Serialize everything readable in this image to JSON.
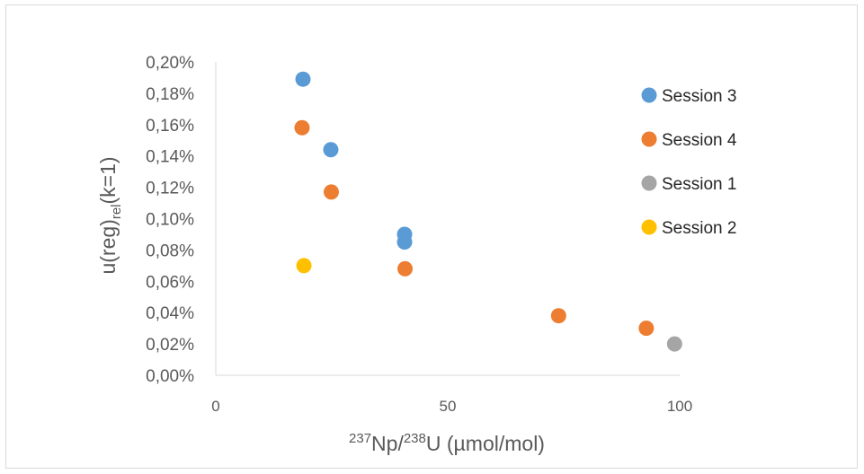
{
  "chart_data": {
    "type": "scatter",
    "title": "",
    "xlabel": {
      "base_parts": [
        "",
        "Np/",
        "U (µmol/mol)"
      ],
      "sups": [
        "237",
        "238"
      ]
    },
    "ylabel": {
      "pre": "u(reg)",
      "sub": "rel",
      "post": "(k=1)"
    },
    "xlim": [
      0,
      100
    ],
    "ylim": [
      0,
      0.2
    ],
    "x_ticks": [
      0,
      50,
      100
    ],
    "x_tick_labels": [
      "0",
      "50",
      "100"
    ],
    "y_ticks": [
      0,
      0.02,
      0.04,
      0.06,
      0.08,
      0.1,
      0.12,
      0.14,
      0.16,
      0.18,
      0.2
    ],
    "y_tick_labels": [
      "0,00%",
      "0,02%",
      "0,04%",
      "0,06%",
      "0,08%",
      "0,10%",
      "0,12%",
      "0,14%",
      "0,16%",
      "0,18%",
      "0,20%"
    ],
    "grid": false,
    "legend_position": "right",
    "series": [
      {
        "name": "Session 3",
        "color": "#5B9BD5",
        "points": [
          [
            18.8,
            0.189
          ],
          [
            24.8,
            0.144
          ],
          [
            40.7,
            0.09
          ],
          [
            40.7,
            0.085
          ]
        ]
      },
      {
        "name": "Session 4",
        "color": "#ED7D31",
        "points": [
          [
            18.6,
            0.158
          ],
          [
            24.9,
            0.117
          ],
          [
            40.8,
            0.068
          ],
          [
            73.9,
            0.038
          ],
          [
            92.8,
            0.03
          ]
        ]
      },
      {
        "name": "Session 1",
        "color": "#A5A5A5",
        "points": [
          [
            98.9,
            0.02
          ]
        ]
      },
      {
        "name": "Session 2",
        "color": "#FFC000",
        "points": [
          [
            19.0,
            0.07
          ]
        ]
      }
    ]
  }
}
